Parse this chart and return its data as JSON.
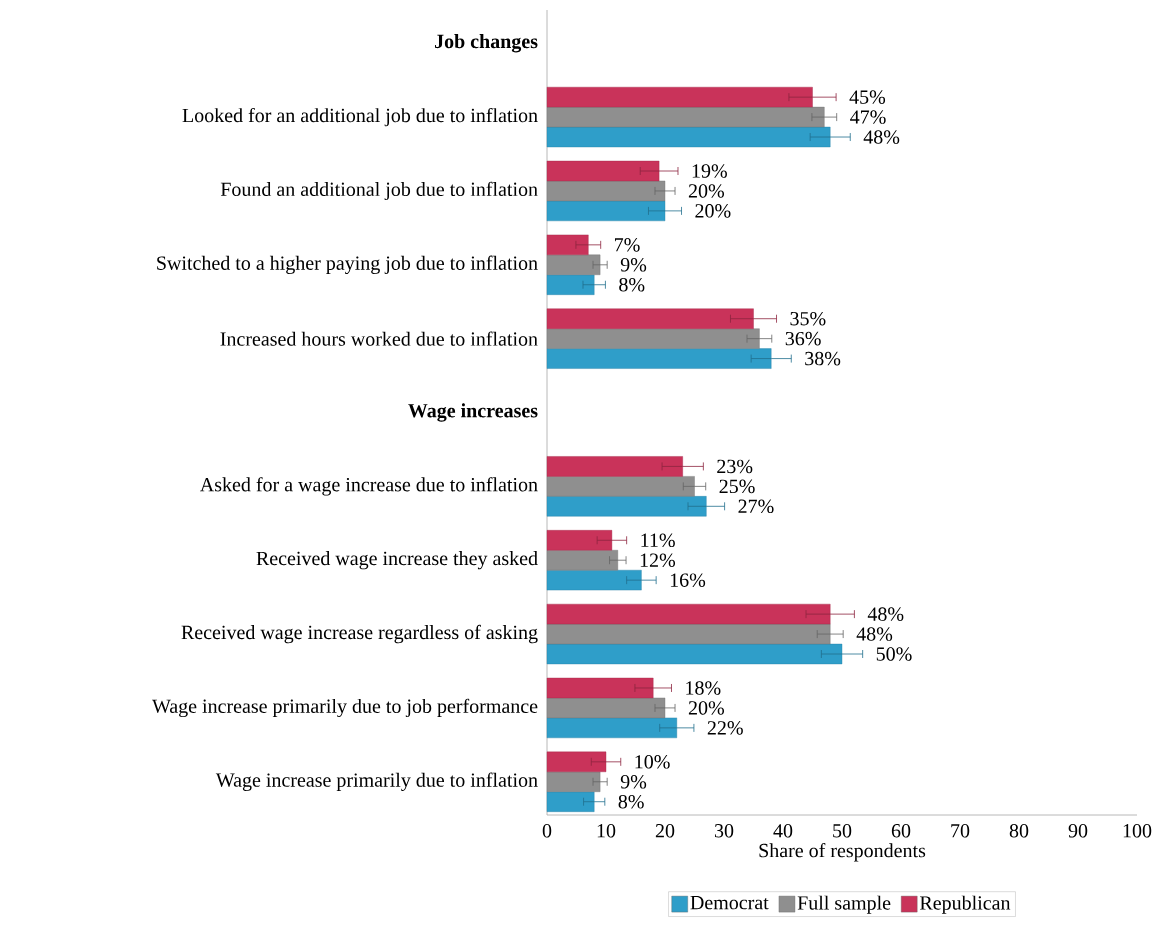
{
  "chart_data": {
    "type": "bar",
    "orientation": "horizontal",
    "xlabel": "Share of respondents",
    "categories": [
      "Job changes",
      "Looked for an additional job due to inflation",
      "Found an additional job due to inflation",
      "Switched to a higher paying job due to inflation",
      "Increased hours worked due to inflation",
      "Wage increases",
      "Asked for a wage increase due to inflation",
      "Received wage increase they asked",
      "Received wage increase regardless of asking",
      "Wage increase primarily due to job performance",
      "Wage increase primarily due to inflation"
    ],
    "series": [
      {
        "name": "Democrat",
        "color": "#2f9ec9",
        "values": [
          null,
          48,
          20,
          8,
          38,
          null,
          27,
          16,
          50,
          22,
          8
        ],
        "errors": [
          null,
          3.4,
          2.8,
          1.9,
          3.4,
          null,
          3.1,
          2.5,
          3.5,
          2.9,
          1.8
        ],
        "value_labels": [
          null,
          "48%",
          "20%",
          "8%",
          "38%",
          null,
          "27%",
          "16%",
          "50%",
          "22%",
          "8%"
        ]
      },
      {
        "name": "Full sample",
        "color": "#8f8f8f",
        "values": [
          null,
          47,
          20,
          9,
          36,
          null,
          25,
          12,
          48,
          20,
          9
        ],
        "errors": [
          null,
          2.1,
          1.7,
          1.2,
          2.1,
          null,
          1.9,
          1.4,
          2.2,
          1.7,
          1.2
        ],
        "value_labels": [
          null,
          "47%",
          "20%",
          "9%",
          "36%",
          null,
          "25%",
          "12%",
          "48%",
          "20%",
          "9%"
        ]
      },
      {
        "name": "Republican",
        "color": "#c9335a",
        "values": [
          null,
          45,
          19,
          7,
          35,
          null,
          23,
          11,
          48,
          18,
          10
        ],
        "errors": [
          null,
          4.0,
          3.2,
          2.1,
          3.9,
          null,
          3.5,
          2.5,
          4.1,
          3.1,
          2.5
        ],
        "value_labels": [
          null,
          "45%",
          "19%",
          "7%",
          "35%",
          null,
          "23%",
          "11%",
          "48%",
          "18%",
          "10%"
        ]
      }
    ],
    "xlim": [
      0,
      100
    ],
    "xticks": [
      0,
      10,
      20,
      30,
      40,
      50,
      60,
      70,
      80,
      90,
      100
    ],
    "legend": "bottom",
    "grid": false
  }
}
